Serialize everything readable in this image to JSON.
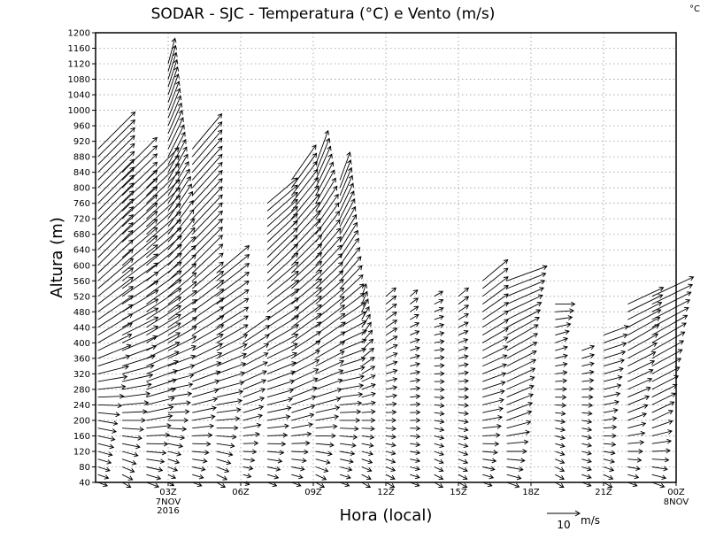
{
  "chart_data": {
    "type": "wind-barb time-height",
    "title": "SODAR - SJC - Temperatura (°C) e Vento (m/s)",
    "corner_unit": "°C",
    "xlabel": "Hora (local)",
    "ylabel": "Altura (m)",
    "x_range_hours": [
      0,
      24
    ],
    "ylim": [
      40,
      1200
    ],
    "grid": true,
    "y_ticks": [
      40,
      80,
      120,
      160,
      200,
      240,
      280,
      320,
      360,
      400,
      440,
      480,
      520,
      560,
      600,
      640,
      680,
      720,
      760,
      800,
      840,
      880,
      920,
      960,
      1000,
      1040,
      1080,
      1120,
      1160,
      1200
    ],
    "x_ticks": [
      {
        "hour": 3,
        "label": "03Z",
        "sublabels": [
          "7NOV",
          "2016"
        ]
      },
      {
        "hour": 6,
        "label": "06Z",
        "sublabels": []
      },
      {
        "hour": 9,
        "label": "09Z",
        "sublabels": []
      },
      {
        "hour": 12,
        "label": "12Z",
        "sublabels": []
      },
      {
        "hour": 15,
        "label": "15Z",
        "sublabels": []
      },
      {
        "hour": 18,
        "label": "18Z",
        "sublabels": []
      },
      {
        "hour": 21,
        "label": "21Z",
        "sublabels": []
      },
      {
        "hour": 24,
        "label": "00Z",
        "sublabels": [
          "8NOV"
        ]
      }
    ],
    "legend": {
      "reference_speed": "10",
      "unit": "m/s"
    },
    "height_step_m": 20,
    "columns": [
      {
        "hour": 0.1,
        "top_m": 900,
        "profile": [
          [
            40,
            3,
            290
          ],
          [
            200,
            6,
            280
          ],
          [
            400,
            12,
            240
          ],
          [
            600,
            15,
            225
          ],
          [
            900,
            16,
            225
          ]
        ]
      },
      {
        "hour": 1.1,
        "top_m": 840,
        "profile": [
          [
            40,
            3,
            300
          ],
          [
            200,
            7,
            270
          ],
          [
            400,
            12,
            245
          ],
          [
            600,
            14,
            230
          ],
          [
            840,
            15,
            225
          ]
        ]
      },
      {
        "hour": 2.1,
        "top_m": 820,
        "profile": [
          [
            40,
            4,
            290
          ],
          [
            200,
            8,
            260
          ],
          [
            400,
            12,
            240
          ],
          [
            600,
            14,
            230
          ],
          [
            820,
            14,
            225
          ]
        ]
      },
      {
        "hour": 3.0,
        "top_m": 1120,
        "profile": [
          [
            40,
            2,
            300
          ],
          [
            200,
            6,
            270
          ],
          [
            400,
            10,
            240
          ],
          [
            700,
            13,
            215
          ],
          [
            1120,
            8,
            195
          ]
        ]
      },
      {
        "hour": 4.0,
        "top_m": 900,
        "profile": [
          [
            40,
            3,
            290
          ],
          [
            200,
            7,
            260
          ],
          [
            400,
            11,
            240
          ],
          [
            600,
            13,
            225
          ],
          [
            900,
            14,
            220
          ]
        ]
      },
      {
        "hour": 5.0,
        "top_m": 580,
        "profile": [
          [
            40,
            3,
            300
          ],
          [
            200,
            7,
            265
          ],
          [
            400,
            11,
            240
          ],
          [
            580,
            13,
            230
          ]
        ]
      },
      {
        "hour": 6.1,
        "top_m": 420,
        "profile": [
          [
            40,
            2,
            290
          ],
          [
            200,
            6,
            255
          ],
          [
            420,
            10,
            235
          ]
        ]
      },
      {
        "hour": 7.1,
        "top_m": 760,
        "profile": [
          [
            40,
            3,
            290
          ],
          [
            200,
            7,
            260
          ],
          [
            400,
            11,
            240
          ],
          [
            600,
            13,
            225
          ],
          [
            760,
            12,
            230
          ]
        ]
      },
      {
        "hour": 8.1,
        "top_m": 820,
        "profile": [
          [
            40,
            3,
            290
          ],
          [
            200,
            7,
            255
          ],
          [
            400,
            11,
            235
          ],
          [
            600,
            13,
            225
          ],
          [
            820,
            13,
            215
          ]
        ]
      },
      {
        "hour": 9.1,
        "top_m": 860,
        "profile": [
          [
            40,
            3,
            300
          ],
          [
            200,
            7,
            260
          ],
          [
            400,
            11,
            235
          ],
          [
            700,
            12,
            215
          ],
          [
            860,
            11,
            200
          ]
        ]
      },
      {
        "hour": 10.1,
        "top_m": 820,
        "profile": [
          [
            40,
            3,
            290
          ],
          [
            200,
            6,
            270
          ],
          [
            400,
            9,
            245
          ],
          [
            600,
            10,
            215
          ],
          [
            820,
            9,
            200
          ]
        ]
      },
      {
        "hour": 11.0,
        "top_m": 520,
        "profile": [
          [
            40,
            3,
            300
          ],
          [
            200,
            4,
            270
          ],
          [
            400,
            5,
            220
          ],
          [
            520,
            4,
            200
          ]
        ]
      },
      {
        "hour": 12.0,
        "top_m": 520,
        "profile": [
          [
            40,
            3,
            300
          ],
          [
            200,
            3,
            270
          ],
          [
            400,
            4,
            240
          ],
          [
            520,
            4,
            230
          ]
        ]
      },
      {
        "hour": 13.0,
        "top_m": 520,
        "profile": [
          [
            40,
            3,
            290
          ],
          [
            200,
            3,
            270
          ],
          [
            400,
            3,
            250
          ],
          [
            520,
            3,
            230
          ]
        ]
      },
      {
        "hour": 14.0,
        "top_m": 520,
        "profile": [
          [
            40,
            3,
            300
          ],
          [
            200,
            3,
            280
          ],
          [
            400,
            3,
            260
          ],
          [
            520,
            3,
            240
          ]
        ]
      },
      {
        "hour": 15.0,
        "top_m": 520,
        "profile": [
          [
            40,
            3,
            300
          ],
          [
            200,
            3,
            280
          ],
          [
            400,
            3,
            250
          ],
          [
            520,
            4,
            230
          ]
        ]
      },
      {
        "hour": 16.0,
        "top_m": 560,
        "profile": [
          [
            40,
            3,
            290
          ],
          [
            200,
            6,
            260
          ],
          [
            400,
            9,
            240
          ],
          [
            560,
            10,
            230
          ]
        ]
      },
      {
        "hour": 17.0,
        "top_m": 560,
        "profile": [
          [
            40,
            4,
            290
          ],
          [
            200,
            8,
            250
          ],
          [
            400,
            11,
            240
          ],
          [
            560,
            13,
            250
          ]
        ]
      },
      {
        "hour": 19.0,
        "top_m": 500,
        "profile": [
          [
            40,
            3,
            300
          ],
          [
            200,
            3,
            280
          ],
          [
            400,
            4,
            250
          ],
          [
            500,
            6,
            270
          ]
        ]
      },
      {
        "hour": 20.1,
        "top_m": 380,
        "profile": [
          [
            40,
            3,
            290
          ],
          [
            200,
            3,
            280
          ],
          [
            380,
            4,
            250
          ]
        ]
      },
      {
        "hour": 21.0,
        "top_m": 420,
        "profile": [
          [
            40,
            3,
            300
          ],
          [
            200,
            4,
            260
          ],
          [
            420,
            8,
            250
          ]
        ]
      },
      {
        "hour": 22.0,
        "top_m": 500,
        "profile": [
          [
            40,
            3,
            290
          ],
          [
            200,
            6,
            250
          ],
          [
            400,
            11,
            240
          ],
          [
            500,
            12,
            245
          ]
        ]
      },
      {
        "hour": 23.0,
        "top_m": 520,
        "profile": [
          [
            40,
            4,
            290
          ],
          [
            200,
            7,
            245
          ],
          [
            400,
            12,
            240
          ],
          [
            520,
            14,
            245
          ]
        ]
      }
    ]
  }
}
